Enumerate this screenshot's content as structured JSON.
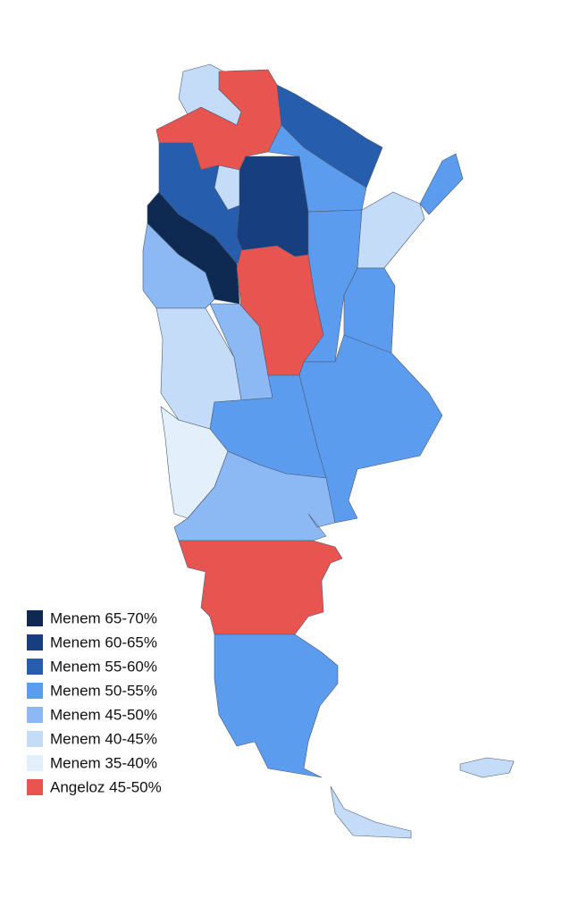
{
  "legend": [
    {
      "label": "Menem 65-70%",
      "color": "#0e2a52"
    },
    {
      "label": "Menem 60-65%",
      "color": "#173e7e"
    },
    {
      "label": "Menem 55-60%",
      "color": "#265ead"
    },
    {
      "label": "Menem 50-55%",
      "color": "#5b9cef"
    },
    {
      "label": "Menem 45-50%",
      "color": "#8cb8f3"
    },
    {
      "label": "Menem 40-45%",
      "color": "#c4dcf8"
    },
    {
      "label": "Menem 35-40%",
      "color": "#e4effc"
    },
    {
      "label": "Angeloz 45-50%",
      "color": "#e85550"
    }
  ]
}
